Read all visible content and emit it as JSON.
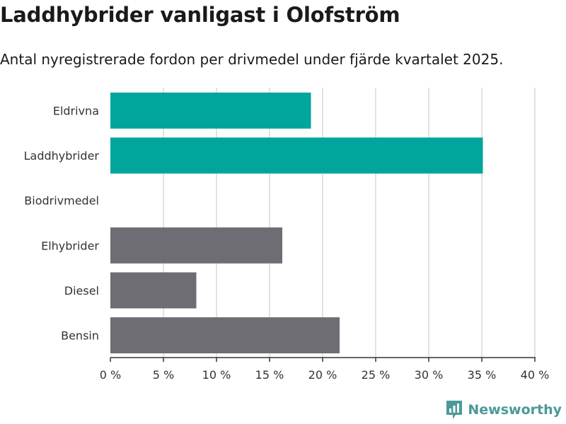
{
  "title": "Laddhybrider vanligast i Olofström",
  "subtitle": "Antal nyregistrerade fordon per drivmedel under fjärde kvartalet 2025.",
  "brand": {
    "name": "Newsworthy",
    "icon": "newsworthy-logo-icon",
    "color": "#4a9a98"
  },
  "colors": {
    "highlight": "#00a59b",
    "default": "#6e6d73",
    "grid": "#d9d9d9",
    "axis": "#333333"
  },
  "chart_data": {
    "type": "bar",
    "orientation": "horizontal",
    "categories": [
      "Eldrivna",
      "Laddhybrider",
      "Biodrivmedel",
      "Elhybrider",
      "Diesel",
      "Bensin"
    ],
    "values": [
      18.9,
      35.1,
      0,
      16.2,
      8.1,
      21.6
    ],
    "highlighted": [
      true,
      true,
      false,
      false,
      false,
      false
    ],
    "xlim": [
      0,
      40
    ],
    "xticks": [
      0,
      5,
      10,
      15,
      20,
      25,
      30,
      35,
      40
    ],
    "xtick_labels": [
      "0 %",
      "5 %",
      "10 %",
      "15 %",
      "20 %",
      "25 %",
      "30 %",
      "35 %",
      "40 %"
    ],
    "grid": true,
    "xlabel": "",
    "ylabel": ""
  }
}
